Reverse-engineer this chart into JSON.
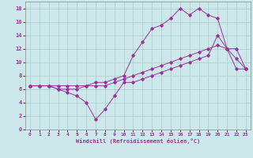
{
  "xlabel": "Windchill (Refroidissement éolien,°C)",
  "bg_color": "#cce8ea",
  "grid_color": "#aacccc",
  "line_color": "#993399",
  "xlim": [
    -0.5,
    23.5
  ],
  "ylim": [
    0,
    19
  ],
  "xticks": [
    0,
    1,
    2,
    3,
    4,
    5,
    6,
    7,
    8,
    9,
    10,
    11,
    12,
    13,
    14,
    15,
    16,
    17,
    18,
    19,
    20,
    21,
    22,
    23
  ],
  "yticks": [
    0,
    2,
    4,
    6,
    8,
    10,
    12,
    14,
    16,
    18
  ],
  "series": [
    {
      "x": [
        0,
        1,
        2,
        3,
        4,
        5,
        6,
        7,
        8,
        9,
        10,
        11,
        12,
        13,
        14,
        15,
        16,
        17,
        18,
        19,
        20,
        21,
        22,
        23
      ],
      "y": [
        6.5,
        6.5,
        6.5,
        6.0,
        5.5,
        5.0,
        4.0,
        1.5,
        3.0,
        5.0,
        7.0,
        7.0,
        7.5,
        8.0,
        8.5,
        9.0,
        9.5,
        10.0,
        10.5,
        11.0,
        14.0,
        12.0,
        10.5,
        9.0
      ]
    },
    {
      "x": [
        0,
        1,
        2,
        3,
        4,
        5,
        6,
        7,
        8,
        9,
        10,
        11,
        12,
        13,
        14,
        15,
        16,
        17,
        18,
        19,
        20,
        21,
        22,
        23
      ],
      "y": [
        6.5,
        6.5,
        6.5,
        6.0,
        6.0,
        6.0,
        6.5,
        7.0,
        7.0,
        7.5,
        8.0,
        11.0,
        13.0,
        15.0,
        15.5,
        16.5,
        18.0,
        17.0,
        18.0,
        17.0,
        16.5,
        12.0,
        12.0,
        9.0
      ]
    },
    {
      "x": [
        0,
        1,
        2,
        3,
        4,
        5,
        6,
        7,
        8,
        9,
        10,
        11,
        12,
        13,
        14,
        15,
        16,
        17,
        18,
        19,
        20,
        21,
        22,
        23
      ],
      "y": [
        6.5,
        6.5,
        6.5,
        6.5,
        6.5,
        6.5,
        6.5,
        6.5,
        6.5,
        7.0,
        7.5,
        8.0,
        8.5,
        9.0,
        9.5,
        10.0,
        10.5,
        11.0,
        11.5,
        12.0,
        12.5,
        12.0,
        9.0,
        9.0
      ]
    }
  ]
}
